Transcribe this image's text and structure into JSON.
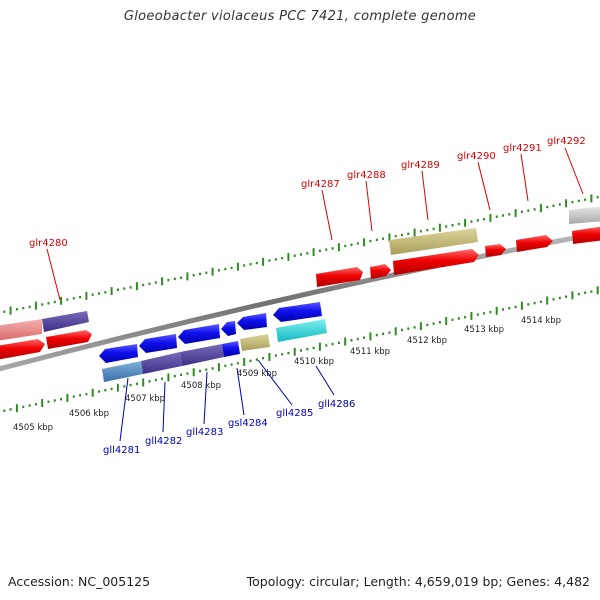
{
  "title": "Gloeobacter violaceus PCC 7421, complete genome",
  "accession": "Accession: NC_005125",
  "topology": "Topology: circular; Length: 4,659,019 bp; Genes: 4,482",
  "colors": {
    "background": "#ffffff",
    "backbone": "#808080",
    "ticks": "#2e8b22",
    "forward_label": "#dd0000",
    "reverse_label": "#0000bb"
  },
  "scale_ticks": [
    "4505 kbp",
    "4506 kbp",
    "4507 kbp",
    "4508 kbp",
    "4509 kbp",
    "4510 kbp",
    "4511 kbp",
    "4512 kbp",
    "4513 kbp",
    "4514 kbp"
  ],
  "forward_genes": [
    {
      "name": "glr4280",
      "color": "red"
    },
    {
      "name": "glr4287",
      "color": "red"
    },
    {
      "name": "glr4288",
      "color": "red"
    },
    {
      "name": "glr4289",
      "color": "red"
    },
    {
      "name": "glr4290",
      "color": "red"
    },
    {
      "name": "glr4291",
      "color": "red"
    },
    {
      "name": "glr4292",
      "color": "red"
    }
  ],
  "reverse_genes": [
    {
      "name": "gll4281",
      "color": "blue"
    },
    {
      "name": "gll4282",
      "color": "blue"
    },
    {
      "name": "gll4283",
      "color": "blue"
    },
    {
      "name": "gsl4284",
      "color": "blue"
    },
    {
      "name": "gll4285",
      "color": "blue"
    },
    {
      "name": "gll4286",
      "color": "blue"
    }
  ]
}
